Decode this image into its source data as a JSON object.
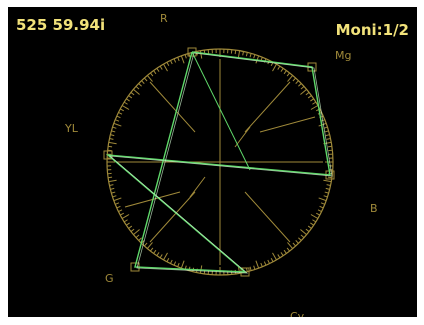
{
  "header": {
    "format": "525 59.94i",
    "monitor": "Moni:1/2"
  },
  "scope": {
    "type": "vectorscope",
    "targets": {
      "r": "R",
      "mg": "Mg",
      "b": "B",
      "cy": "Cy",
      "g": "G",
      "yl": "YL"
    }
  },
  "colors": {
    "screen_bg": "#000000",
    "graticule": "#a08a3a",
    "label_text": "#f2e27a",
    "trace": "#5fd86a",
    "trace_bright": "#d8ffd8"
  }
}
